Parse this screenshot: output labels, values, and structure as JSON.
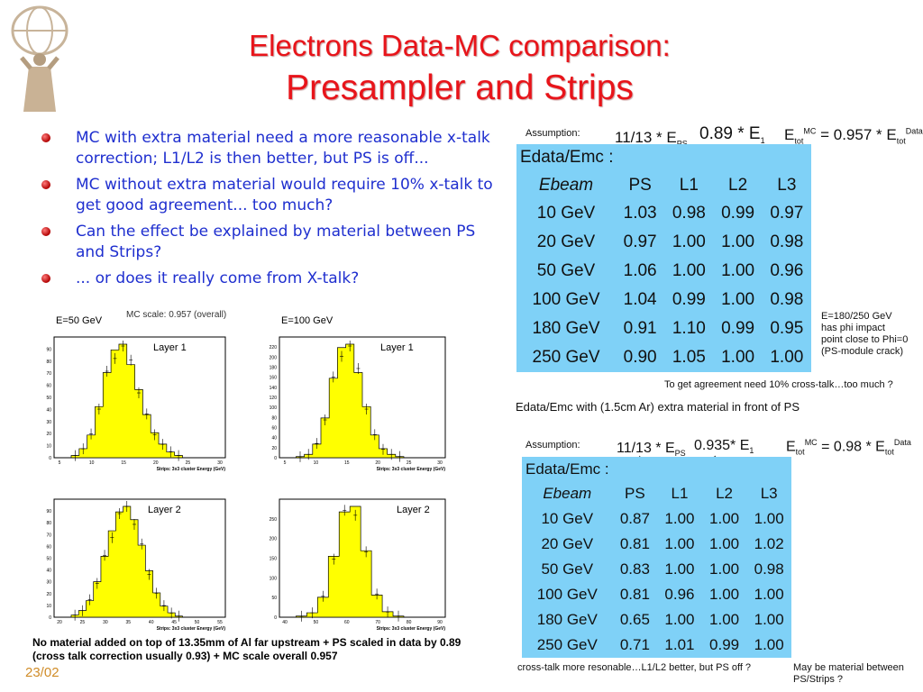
{
  "title_line1": "Electrons Data-MC comparison:",
  "title_line2": "Presampler and Strips",
  "bullets": [
    "MC with extra material need a more reasonable x-talk correction; L1/L2 is then better, but PS is off...",
    "MC without extra material would require 10% x-talk to get good agreement... too much?",
    "Can the effect be explained by material between PS and Strips?",
    "... or does it really come from X-talk?"
  ],
  "hist_labels": {
    "e50": "E=50 GeV",
    "e100": "E=100 GeV",
    "mc_scale": "MC scale: 0.957 (overall)",
    "layer1": "Layer 1",
    "layer2": "Layer 2",
    "xaxis_strips": "Strips: 3x3 cluster Energy (GeV)"
  },
  "histograms": [
    {
      "id": "h50_l1",
      "x_ticks": [
        "5",
        "10",
        "15",
        "20",
        "25",
        "30"
      ],
      "y_ticks": [
        "0",
        "10",
        "20",
        "30",
        "40",
        "50",
        "60",
        "70",
        "80",
        "90"
      ],
      "peak_fraction": [
        0.02,
        0.08,
        0.2,
        0.45,
        0.75,
        0.95,
        1.0,
        0.82,
        0.6,
        0.38,
        0.22,
        0.12,
        0.05,
        0.02
      ]
    },
    {
      "id": "h100_l1",
      "x_ticks": [
        "5",
        "10",
        "15",
        "20",
        "25",
        "30"
      ],
      "y_ticks": [
        "0",
        "20",
        "40",
        "60",
        "80",
        "100",
        "120",
        "140",
        "160",
        "180",
        "200",
        "220"
      ],
      "peak_fraction": [
        0.01,
        0.03,
        0.12,
        0.35,
        0.7,
        0.97,
        1.0,
        0.75,
        0.45,
        0.2,
        0.08,
        0.03,
        0.01
      ]
    },
    {
      "id": "h50_l2",
      "x_ticks": [
        "20",
        "25",
        "30",
        "35",
        "40",
        "45",
        "50",
        "55"
      ],
      "y_ticks": [
        "0",
        "10",
        "20",
        "30",
        "40",
        "50",
        "60",
        "70",
        "80",
        "90"
      ],
      "peak_fraction": [
        0.02,
        0.06,
        0.15,
        0.32,
        0.55,
        0.78,
        0.95,
        1.0,
        0.88,
        0.65,
        0.42,
        0.22,
        0.1,
        0.04,
        0.01
      ]
    },
    {
      "id": "h100_l2",
      "x_ticks": [
        "40",
        "50",
        "60",
        "70",
        "80",
        "90"
      ],
      "y_ticks": [
        "0",
        "50",
        "100",
        "150",
        "200",
        "250"
      ],
      "peak_fraction": [
        0.01,
        0.04,
        0.18,
        0.55,
        0.95,
        1.0,
        0.6,
        0.2,
        0.05,
        0.01
      ]
    }
  ],
  "table1": {
    "assumption": "Assumption:",
    "header": "Edata/Emc :",
    "columns": [
      "Ebeam",
      "PS",
      "L1",
      "L2",
      "L3"
    ],
    "rows": [
      [
        "10 GeV",
        "1.03",
        "0.98",
        "0.99",
        "0.97"
      ],
      [
        "20 GeV",
        "0.97",
        "1.00",
        "1.00",
        "0.98"
      ],
      [
        "50 GeV",
        "1.06",
        "1.00",
        "1.00",
        "0.96"
      ],
      [
        "100 GeV",
        "1.04",
        "0.99",
        "1.00",
        "0.98"
      ],
      [
        "180 GeV",
        "0.91",
        "1.10",
        "0.99",
        "0.95"
      ],
      [
        "250 GeV",
        "0.90",
        "1.05",
        "1.00",
        "1.00"
      ]
    ],
    "f_ps": "11/13 * E",
    "f_e1": "0.89 * E",
    "f_tot": "0.957 * E"
  },
  "table2": {
    "assumption": "Assumption:",
    "header": "Edata/Emc :",
    "columns": [
      "Ebeam",
      "PS",
      "L1",
      "L2",
      "L3"
    ],
    "rows": [
      [
        "10 GeV",
        "0.87",
        "1.00",
        "1.00",
        "1.00"
      ],
      [
        "20 GeV",
        "0.81",
        "1.00",
        "1.00",
        "1.02"
      ],
      [
        "50 GeV",
        "0.83",
        "1.00",
        "1.00",
        "0.98"
      ],
      [
        "100 GeV",
        "0.81",
        "0.96",
        "1.00",
        "1.00"
      ],
      [
        "180 GeV",
        "0.65",
        "1.00",
        "1.00",
        "1.00"
      ],
      [
        "250 GeV",
        "0.71",
        "1.01",
        "0.99",
        "1.00"
      ]
    ],
    "f_ps": "11/13 * E",
    "f_e1": "0.935* E",
    "f_tot": "0.98 * E"
  },
  "side_note": [
    "E=180/250 GeV",
    "has phi impact",
    "point close to Phi=0",
    "(PS-module crack)"
  ],
  "agreement_note": "To get agreement need 10% cross-talk…too much ?",
  "caption": "Edata/Emc with (1.5cm Ar) extra material in front of PS",
  "crosstalk_note": "cross-talk more resonable…L1/L2 better, but PS off ?",
  "material_note": [
    "May be material between",
    "PS/Strips ?"
  ],
  "bottom_note": "No material added on top of 13.35mm of Al far upstream + PS scaled in data by 0.89 (cross talk correction usually 0.93) + MC scale overall 0.957",
  "date": "23/02"
}
